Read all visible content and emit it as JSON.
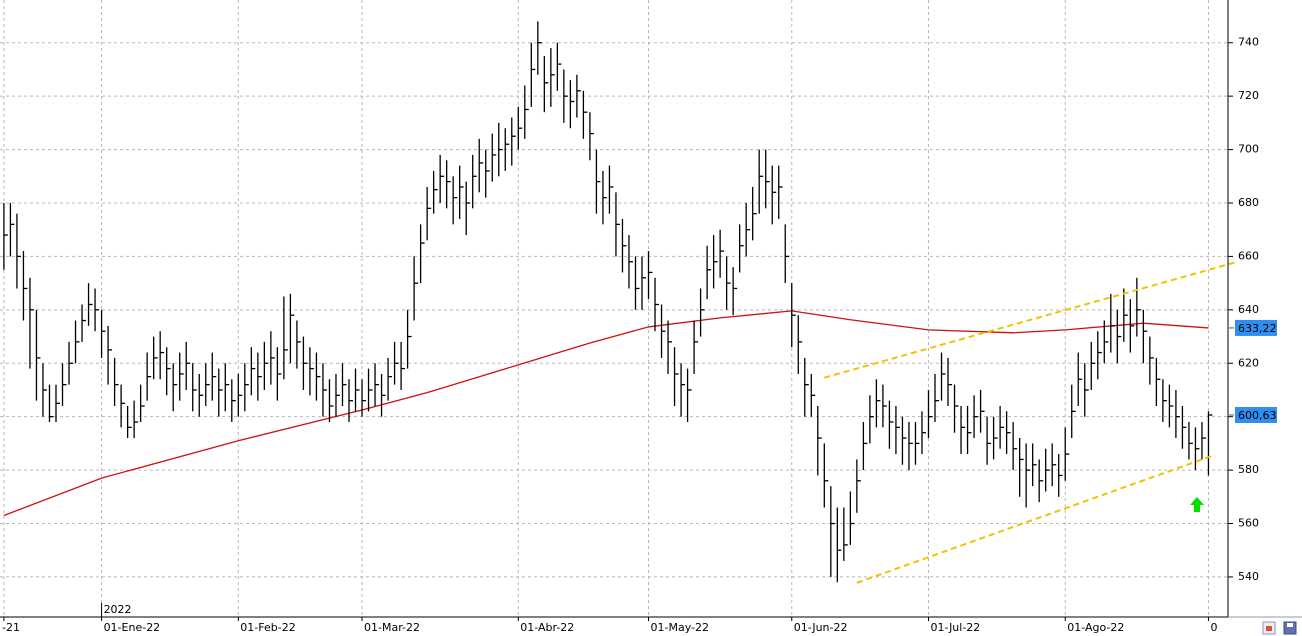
{
  "chart_data": {
    "type": "ohlc",
    "ylim": [
      525,
      756
    ],
    "yticks": [
      540,
      560,
      580,
      600,
      620,
      640,
      660,
      680,
      700,
      720,
      740
    ],
    "xlim": [
      -0.6,
      188
    ],
    "xticks": [
      {
        "value": 0,
        "label": "-21"
      },
      {
        "value": 15,
        "label": "01-Ene-22"
      },
      {
        "value": 36,
        "label": "01-Feb-22"
      },
      {
        "value": 55,
        "label": "01-Mar-22"
      },
      {
        "value": 79,
        "label": "01-Abr-22"
      },
      {
        "value": 99,
        "label": "01-May-22"
      },
      {
        "value": 121,
        "label": "01-Jun-22"
      },
      {
        "value": 142,
        "label": "01-Jul-22"
      },
      {
        "value": 163,
        "label": "01-Ago-22"
      },
      {
        "value": 185,
        "label": "0"
      }
    ],
    "year_label": {
      "value": 15,
      "label": "2022"
    },
    "grid": true,
    "color": "#000000",
    "ohlc": {
      "high": [
        680,
        680,
        676,
        662,
        652,
        640,
        620,
        612,
        612,
        620,
        628,
        636,
        642,
        650,
        648,
        640,
        634,
        622,
        612,
        604,
        606,
        612,
        624,
        630,
        632,
        626,
        620,
        624,
        628,
        620,
        616,
        620,
        624,
        618,
        620,
        614,
        616,
        620,
        626,
        624,
        628,
        632,
        626,
        645,
        646,
        636,
        630,
        626,
        624,
        620,
        614,
        616,
        620,
        614,
        618,
        614,
        618,
        620,
        616,
        622,
        628,
        628,
        640,
        660,
        672,
        686,
        692,
        698,
        696,
        690,
        694,
        688,
        698,
        704,
        700,
        706,
        710,
        708,
        712,
        716,
        724,
        740,
        748,
        735,
        738,
        740,
        730,
        726,
        728,
        722,
        714,
        700,
        692,
        694,
        684,
        674,
        668,
        660,
        660,
        662,
        652,
        642,
        636,
        626,
        620,
        618,
        636,
        648,
        664,
        668,
        670,
        660,
        656,
        672,
        680,
        686,
        700,
        700,
        694,
        694,
        672,
        650,
        638,
        622,
        616,
        604,
        590,
        574,
        566,
        566,
        572,
        584,
        598,
        608,
        614,
        612,
        606,
        604,
        600,
        598,
        598,
        602,
        610,
        616,
        624,
        622,
        612,
        604,
        604,
        608,
        610,
        600,
        600,
        604,
        602,
        598,
        592,
        590,
        590,
        584,
        588,
        590,
        586,
        596,
        612,
        624,
        620,
        628,
        632,
        636,
        646,
        640,
        648,
        644,
        652,
        640,
        630,
        622,
        614,
        612,
        610,
        604,
        598,
        596,
        598,
        602
      ],
      "low": [
        655,
        660,
        648,
        636,
        618,
        606,
        600,
        598,
        598,
        604,
        612,
        620,
        628,
        634,
        632,
        622,
        612,
        604,
        596,
        592,
        592,
        598,
        606,
        614,
        614,
        608,
        602,
        606,
        610,
        602,
        600,
        604,
        606,
        600,
        602,
        598,
        600,
        602,
        608,
        606,
        610,
        612,
        606,
        614,
        620,
        618,
        610,
        608,
        606,
        600,
        598,
        600,
        604,
        598,
        602,
        600,
        602,
        604,
        600,
        606,
        612,
        610,
        618,
        636,
        650,
        666,
        676,
        680,
        678,
        672,
        674,
        668,
        678,
        684,
        682,
        688,
        690,
        692,
        694,
        700,
        704,
        716,
        728,
        714,
        716,
        722,
        710,
        708,
        712,
        704,
        696,
        676,
        672,
        676,
        660,
        654,
        648,
        640,
        640,
        644,
        632,
        622,
        616,
        604,
        600,
        598,
        616,
        630,
        644,
        648,
        652,
        640,
        638,
        654,
        660,
        666,
        676,
        678,
        672,
        674,
        650,
        626,
        616,
        600,
        600,
        578,
        566,
        540,
        538,
        546,
        552,
        564,
        580,
        590,
        596,
        596,
        588,
        586,
        582,
        580,
        582,
        586,
        592,
        598,
        606,
        604,
        594,
        586,
        586,
        592,
        594,
        582,
        584,
        588,
        586,
        580,
        570,
        566,
        574,
        568,
        572,
        574,
        570,
        576,
        592,
        604,
        600,
        610,
        614,
        620,
        624,
        620,
        628,
        624,
        630,
        620,
        612,
        604,
        598,
        596,
        592,
        588,
        584,
        580,
        584,
        578
      ],
      "close": [
        668,
        672,
        660,
        648,
        640,
        622,
        610,
        600,
        605,
        612,
        620,
        628,
        636,
        642,
        640,
        632,
        625,
        612,
        605,
        596,
        598,
        604,
        615,
        622,
        624,
        618,
        612,
        616,
        620,
        610,
        608,
        612,
        615,
        610,
        612,
        606,
        608,
        612,
        618,
        615,
        620,
        622,
        616,
        625,
        638,
        628,
        620,
        618,
        615,
        610,
        604,
        608,
        612,
        606,
        610,
        606,
        610,
        612,
        608,
        615,
        620,
        618,
        630,
        650,
        665,
        678,
        685,
        690,
        688,
        682,
        686,
        680,
        690,
        695,
        692,
        698,
        700,
        702,
        705,
        708,
        715,
        730,
        740,
        725,
        728,
        732,
        720,
        718,
        722,
        714,
        706,
        688,
        682,
        686,
        672,
        664,
        658,
        648,
        652,
        654,
        642,
        632,
        628,
        616,
        612,
        610,
        628,
        640,
        655,
        658,
        662,
        650,
        648,
        664,
        670,
        676,
        690,
        688,
        684,
        686,
        660,
        638,
        628,
        612,
        608,
        592,
        576,
        560,
        550,
        552,
        560,
        576,
        590,
        600,
        606,
        604,
        598,
        596,
        592,
        590,
        590,
        594,
        600,
        606,
        616,
        612,
        604,
        596,
        594,
        600,
        602,
        590,
        592,
        596,
        594,
        588,
        584,
        580,
        582,
        576,
        580,
        582,
        578,
        586,
        602,
        614,
        610,
        620,
        624,
        628,
        634,
        630,
        638,
        634,
        640,
        632,
        622,
        614,
        606,
        604,
        600,
        596,
        590,
        588,
        592,
        600.63
      ],
      "close_label": "600,63"
    },
    "moving_average": {
      "color": "#cc1111",
      "x": [
        0,
        15,
        36,
        55,
        65,
        79,
        90,
        99,
        110,
        121,
        130,
        142,
        155,
        163,
        175,
        185
      ],
      "values": [
        563,
        577,
        591,
        602.5,
        609,
        619.4,
        627.6,
        633.6,
        637,
        639.6,
        636.3,
        632.5,
        631.4,
        632.5,
        635,
        633.22
      ],
      "label": "633,22"
    },
    "trendlines": [
      {
        "color": "#f2c200",
        "x": [
          126,
          189
        ],
        "values": [
          614.6,
          657.7
        ]
      },
      {
        "color": "#f2c200",
        "x": [
          131,
          186
        ],
        "values": [
          537.8,
          585.7
        ]
      }
    ]
  }
}
